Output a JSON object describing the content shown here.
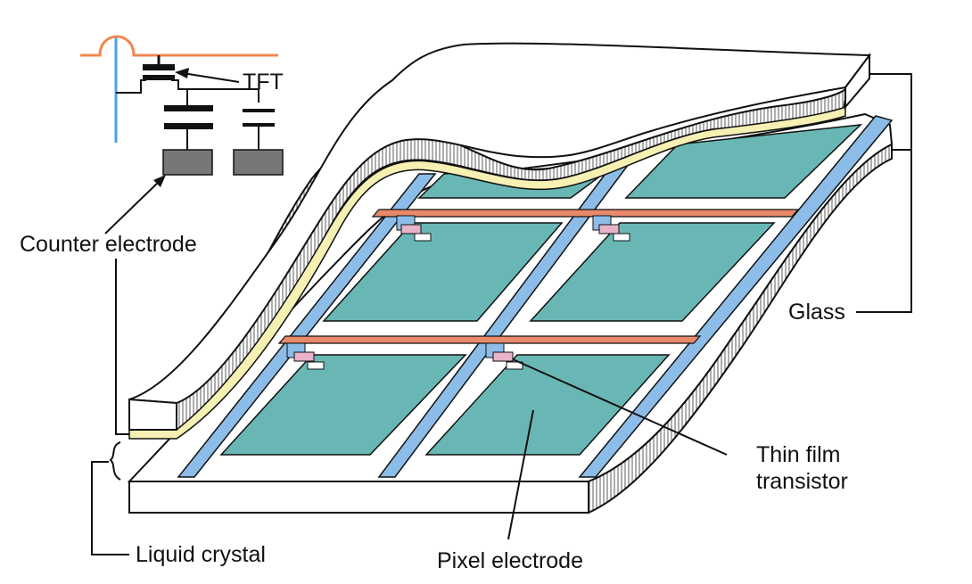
{
  "labels": {
    "tft": "TFT",
    "counter_electrode": "Counter electrode",
    "glass": "Glass",
    "thin_film_line1": "Thin film",
    "thin_film_line2": "transistor",
    "liquid_crystal": "Liquid crystal",
    "pixel_electrode": "Pixel electrode"
  },
  "colors": {
    "pixel_electrode": "#69B7B5",
    "data_line": "#8CBDE8",
    "gate_line": "#E7896A",
    "transistor": "#E8B2C8",
    "liquid_crystal": "#F6F0B3",
    "electrode_block": "#777777",
    "circuit_gate": "#F0894F",
    "circuit_data": "#4AA3E0",
    "outline": "#111111",
    "glass": "#FFFFFF"
  },
  "pixel_grid": {
    "rows": 3,
    "columns": 2
  }
}
